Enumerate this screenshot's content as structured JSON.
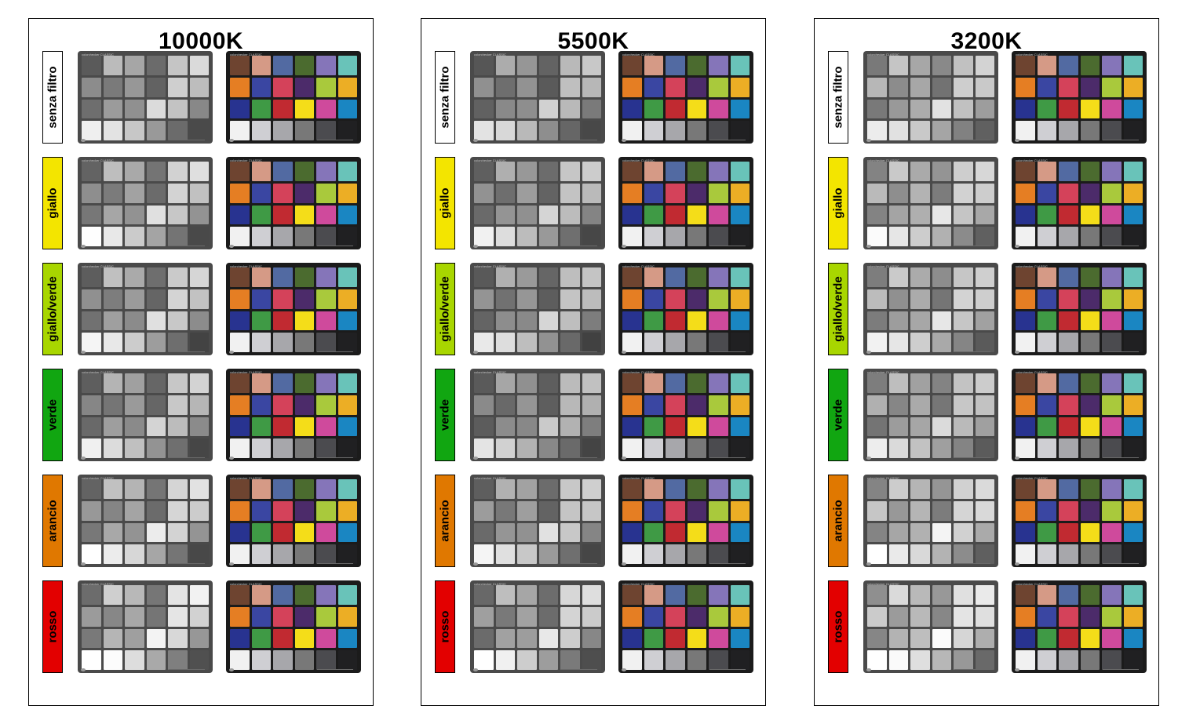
{
  "panels": [
    {
      "title": "10000K",
      "gray_scale": [
        "#5e5e5e",
        "#b8b8b8",
        "#a5a5a5",
        "#6c6c6c",
        "#c8c8c8",
        "#d6d6d6",
        "#8a8a8a",
        "#7a7a7a",
        "#999999",
        "#666666",
        "#cccccc",
        "#bcbcbc",
        "#6f6f6f",
        "#9e9e9e",
        "#8c8c8c",
        "#d9d9d9",
        "#c3c3c3",
        "#8a8a8a",
        "#f3f3f3",
        "#e0e0e0",
        "#c6c6c6",
        "#9a9a9a",
        "#6e6e6e",
        "#464646"
      ]
    },
    {
      "title": "5500K",
      "gray_scale": [
        "#5a5a5a",
        "#a9a9a9",
        "#959595",
        "#646464",
        "#bcbcbc",
        "#c4c4c4",
        "#8e8e8e",
        "#6e6e6e",
        "#949494",
        "#5e5e5e",
        "#bcbcbc",
        "#b6b6b6",
        "#626262",
        "#8c8c8c",
        "#8a8a8a",
        "#cfcfcf",
        "#b9b9b9",
        "#7c7c7c",
        "#e7e7e7",
        "#d5d5d5",
        "#b8b8b8",
        "#8f8f8f",
        "#696969",
        "#444444"
      ]
    },
    {
      "title": "3200K",
      "gray_scale": [
        "#7d7d7d",
        "#c2c2c2",
        "#a6a6a6",
        "#8a8a8a",
        "#c4c4c4",
        "#cfcfcf",
        "#b5b5b5",
        "#8c8c8c",
        "#a9a9a9",
        "#767676",
        "#cbcbcb",
        "#c8c8c8",
        "#7a7a7a",
        "#9c9c9c",
        "#a8a8a8",
        "#e0e0e0",
        "#c1c1c1",
        "#9f9f9f",
        "#f0f0f0",
        "#dedede",
        "#c8c8c8",
        "#a6a6a6",
        "#848484",
        "#5c5c5c"
      ]
    }
  ],
  "filters": [
    {
      "label": "senza filtro",
      "color": "#ffffff"
    },
    {
      "label": "giallo",
      "color": "#f3e500"
    },
    {
      "label": "giallo/verde",
      "color": "#a8d600"
    },
    {
      "label": "verde",
      "color": "#11a611"
    },
    {
      "label": "arancio",
      "color": "#e07800"
    },
    {
      "label": "rosso",
      "color": "#e30000"
    }
  ],
  "chart_brand": "colorchecker CLASSIC",
  "colorchecker_patches": [
    "#6e4430",
    "#d59a86",
    "#526aa2",
    "#4b6b2f",
    "#8575b9",
    "#69c3b9",
    "#e57e23",
    "#3a46a2",
    "#d4425a",
    "#4c2b6a",
    "#a9c93c",
    "#ecae25",
    "#283390",
    "#3f9a45",
    "#c12a31",
    "#f4dd19",
    "#cf4a9c",
    "#1a86c2",
    "#f1f1f1",
    "#cfcfd3",
    "#a7a7ab",
    "#787878",
    "#4b4b4f",
    "#202022"
  ]
}
